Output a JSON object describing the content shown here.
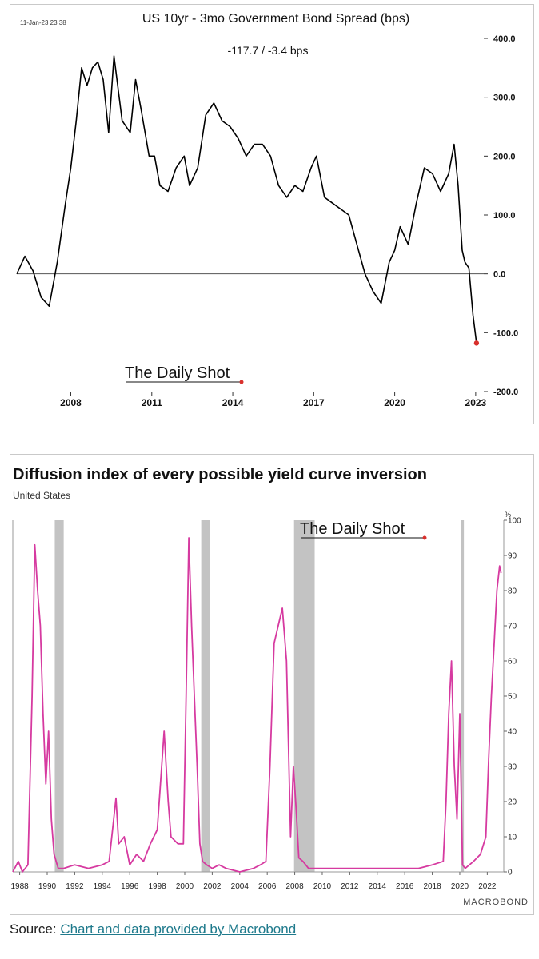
{
  "chart1": {
    "timestamp": "11-Jan-23 23:38",
    "title": "US 10yr - 3mo Government Bond Spread (bps)",
    "subtitle": "-117.7  /  -3.4 bps",
    "watermark": "The Daily Shot",
    "line_color": "#000000",
    "end_marker_color": "#d9302c"
  },
  "chart2": {
    "title": "Diffusion index of every possible yield curve inversion",
    "subtitle": "United States",
    "unit": "%",
    "watermark": "The Daily Shot",
    "brand": "MACROBOND",
    "line_color": "#d63aa0",
    "recession_color": "#c3c3c3"
  },
  "source": {
    "prefix": "Source: ",
    "link_text": "Chart and data provided by Macrobond"
  },
  "chart_data": [
    {
      "type": "line",
      "title": "US 10yr - 3mo Government Bond Spread (bps)",
      "subtitle": "-117.7  /  -3.4 bps",
      "ylim": [
        -200,
        400
      ],
      "xlim": [
        2006.0,
        2023.3
      ],
      "yticks": [
        "400.0",
        "300.0",
        "200.0",
        "100.0",
        "0.0",
        "-100.0",
        "-200.0"
      ],
      "xticks": [
        "2008",
        "2011",
        "2014",
        "2017",
        "2020",
        "2023"
      ],
      "zero_line": true,
      "series": [
        {
          "x": [
            2006.0,
            2006.3,
            2006.6,
            2006.9,
            2007.2,
            2007.5,
            2007.8,
            2008.0,
            2008.2,
            2008.4,
            2008.6,
            2008.8,
            2009.0,
            2009.2,
            2009.4,
            2009.6,
            2009.9,
            2010.2,
            2010.4,
            2010.6,
            2010.9,
            2011.1,
            2011.3,
            2011.6,
            2011.9,
            2012.2,
            2012.4,
            2012.7,
            2013.0,
            2013.3,
            2013.6,
            2013.9,
            2014.2,
            2014.5,
            2014.8,
            2015.1,
            2015.4,
            2015.7,
            2016.0,
            2016.3,
            2016.6,
            2016.9,
            2017.1,
            2017.4,
            2017.7,
            2018.0,
            2018.3,
            2018.6,
            2018.9,
            2019.2,
            2019.5,
            2019.8,
            2020.0,
            2020.2,
            2020.5,
            2020.8,
            2021.1,
            2021.4,
            2021.7,
            2022.0,
            2022.2,
            2022.35,
            2022.5,
            2022.6,
            2022.75,
            2022.9,
            2023.03
          ],
          "y": [
            0,
            30,
            5,
            -40,
            -55,
            20,
            120,
            180,
            260,
            350,
            320,
            350,
            360,
            330,
            240,
            370,
            260,
            240,
            330,
            280,
            200,
            200,
            150,
            140,
            180,
            200,
            150,
            180,
            270,
            290,
            260,
            250,
            230,
            200,
            220,
            220,
            200,
            150,
            130,
            150,
            140,
            180,
            200,
            130,
            120,
            110,
            100,
            50,
            0,
            -30,
            -50,
            20,
            40,
            80,
            50,
            120,
            180,
            170,
            140,
            170,
            220,
            150,
            40,
            20,
            10,
            -70,
            -117.7
          ]
        }
      ]
    },
    {
      "type": "line",
      "title": "Diffusion index of every possible yield curve inversion",
      "subtitle": "United States",
      "ylabel": "%",
      "ylim": [
        0,
        100
      ],
      "xlim": [
        1987.5,
        2023.2
      ],
      "yticks": [
        "100",
        "90",
        "80",
        "70",
        "60",
        "50",
        "40",
        "30",
        "20",
        "10",
        "0"
      ],
      "xticks": [
        "1988",
        "1990",
        "1992",
        "1994",
        "1996",
        "1998",
        "2000",
        "2002",
        "2004",
        "2006",
        "2008",
        "2010",
        "2012",
        "2014",
        "2016",
        "2018",
        "2020",
        "2022"
      ],
      "recessions": [
        [
          1990.55,
          1991.2
        ],
        [
          2001.2,
          2001.85
        ],
        [
          2007.95,
          2009.45
        ],
        [
          2020.1,
          2020.3
        ]
      ],
      "series": [
        {
          "x": [
            1987.5,
            1987.9,
            1988.2,
            1988.6,
            1988.9,
            1989.1,
            1989.3,
            1989.5,
            1989.7,
            1989.9,
            1990.1,
            1990.3,
            1990.5,
            1990.8,
            1991.2,
            1992.0,
            1993.0,
            1994.0,
            1994.5,
            1995.0,
            1995.2,
            1995.6,
            1996.0,
            1996.5,
            1997.0,
            1997.5,
            1998.0,
            1998.5,
            1998.8,
            1999.0,
            1999.5,
            1999.9,
            2000.1,
            2000.3,
            2000.5,
            2000.7,
            2000.9,
            2001.1,
            2001.3,
            2001.6,
            2002.0,
            2002.5,
            2003.0,
            2004.0,
            2005.0,
            2005.5,
            2005.9,
            2006.2,
            2006.5,
            2006.8,
            2007.1,
            2007.4,
            2007.7,
            2007.9,
            2008.1,
            2008.3,
            2008.6,
            2009.0,
            2010.0,
            2011.0,
            2012.0,
            2013.0,
            2014.0,
            2015.0,
            2016.0,
            2017.0,
            2018.0,
            2018.8,
            2019.0,
            2019.2,
            2019.4,
            2019.6,
            2019.8,
            2020.0,
            2020.2,
            2020.4,
            2020.7,
            2021.0,
            2021.5,
            2021.9,
            2022.1,
            2022.3,
            2022.5,
            2022.7,
            2022.9,
            2023.0
          ],
          "y": [
            0,
            3,
            0,
            2,
            50,
            93,
            80,
            70,
            45,
            25,
            40,
            15,
            5,
            1,
            1,
            2,
            1,
            2,
            3,
            21,
            8,
            10,
            2,
            5,
            3,
            8,
            12,
            40,
            20,
            10,
            8,
            8,
            50,
            95,
            70,
            50,
            30,
            8,
            3,
            2,
            1,
            2,
            1,
            0,
            1,
            2,
            3,
            30,
            65,
            70,
            75,
            60,
            10,
            30,
            18,
            4,
            3,
            1,
            1,
            1,
            1,
            1,
            1,
            1,
            1,
            1,
            2,
            3,
            20,
            45,
            60,
            30,
            15,
            45,
            2,
            1,
            2,
            3,
            5,
            10,
            32,
            50,
            65,
            80,
            87,
            85
          ]
        }
      ]
    }
  ]
}
